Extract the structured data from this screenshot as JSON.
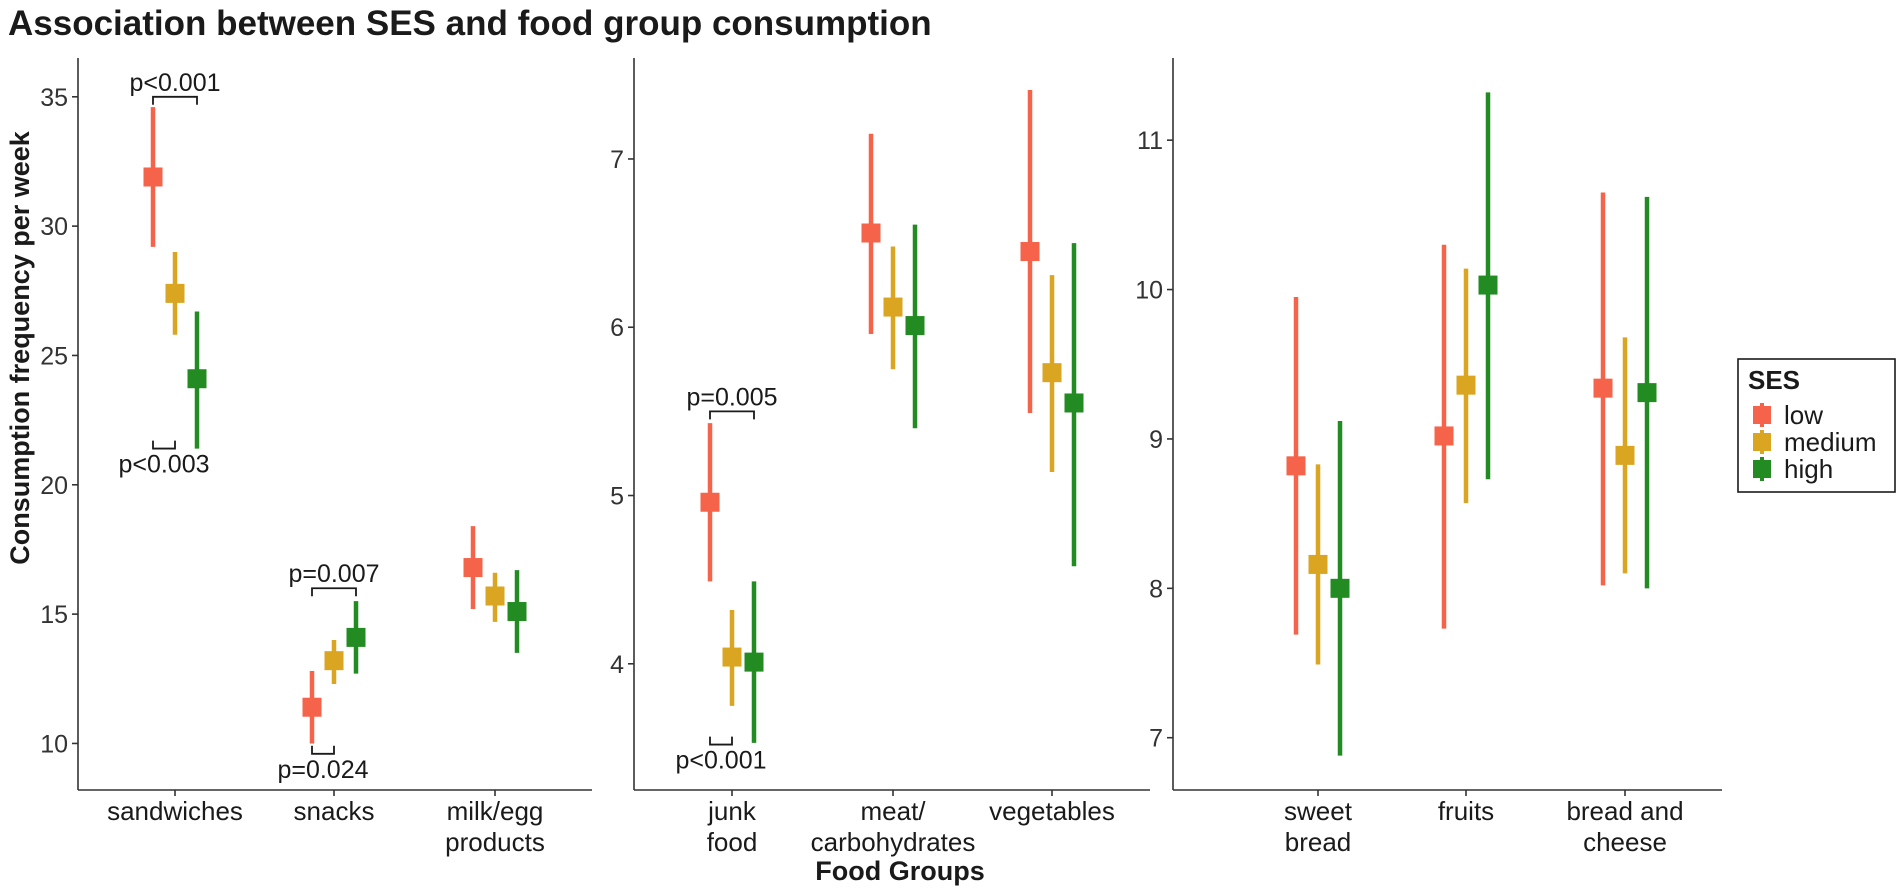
{
  "colors": {
    "low": "#f4634a",
    "medium": "#daa520",
    "high": "#228b22",
    "axis": "#333333",
    "text": "#1a1a1a"
  },
  "chart_data": {
    "type": "scatter",
    "title": "Association between SES and food group consumption",
    "ylabel": "Consumption frequency per week",
    "xlabel": "Food Groups",
    "legend": {
      "title": "SES",
      "placement": "right",
      "entries": [
        "low",
        "medium",
        "high"
      ]
    },
    "series_names": [
      "low",
      "medium",
      "high"
    ],
    "panels": [
      {
        "ylim": [
          8.2,
          36.5
        ],
        "yticks": [
          10,
          15,
          20,
          25,
          30,
          35
        ],
        "categories": [
          {
            "label": [
              "sandwiches"
            ],
            "points": [
              {
                "series": "low",
                "y": 31.9,
                "lo": 29.2,
                "hi": 34.6
              },
              {
                "series": "medium",
                "y": 27.4,
                "lo": 25.8,
                "hi": 29.0
              },
              {
                "series": "high",
                "y": 24.1,
                "lo": 21.4,
                "hi": 26.7
              }
            ]
          },
          {
            "label": [
              "snacks"
            ],
            "points": [
              {
                "series": "low",
                "y": 11.4,
                "lo": 10.0,
                "hi": 12.8
              },
              {
                "series": "medium",
                "y": 13.2,
                "lo": 12.3,
                "hi": 14.0
              },
              {
                "series": "high",
                "y": 14.1,
                "lo": 12.7,
                "hi": 15.5
              }
            ]
          },
          {
            "label": [
              "milk/egg",
              "products"
            ],
            "points": [
              {
                "series": "low",
                "y": 16.8,
                "lo": 15.2,
                "hi": 18.4
              },
              {
                "series": "medium",
                "y": 15.7,
                "lo": 14.7,
                "hi": 16.6
              },
              {
                "series": "high",
                "y": 15.1,
                "lo": 13.5,
                "hi": 16.7
              }
            ]
          }
        ],
        "annotations": [
          {
            "text": "p<0.001",
            "cat": 0,
            "from": "low",
            "to": "high",
            "y": 35.0,
            "side": "above"
          },
          {
            "text": "p<0.003",
            "cat": 0,
            "from": "low",
            "to": "medium",
            "y": 21.4,
            "side": "below"
          },
          {
            "text": "p=0.007",
            "cat": 1,
            "from": "low",
            "to": "high",
            "y": 16.0,
            "side": "above"
          },
          {
            "text": "p=0.024",
            "cat": 1,
            "from": "low",
            "to": "medium",
            "y": 9.6,
            "side": "below"
          }
        ]
      },
      {
        "ylim": [
          3.25,
          7.6
        ],
        "yticks": [
          4,
          5,
          6,
          7
        ],
        "categories": [
          {
            "label": [
              "junk",
              "food"
            ],
            "points": [
              {
                "series": "low",
                "y": 4.96,
                "lo": 4.49,
                "hi": 5.43
              },
              {
                "series": "medium",
                "y": 4.04,
                "lo": 3.75,
                "hi": 4.32
              },
              {
                "series": "high",
                "y": 4.01,
                "lo": 3.53,
                "hi": 4.49
              }
            ]
          },
          {
            "label": [
              "meat/",
              "carbohydrates"
            ],
            "points": [
              {
                "series": "low",
                "y": 6.56,
                "lo": 5.96,
                "hi": 7.15
              },
              {
                "series": "medium",
                "y": 6.12,
                "lo": 5.75,
                "hi": 6.48
              },
              {
                "series": "high",
                "y": 6.01,
                "lo": 5.4,
                "hi": 6.61
              }
            ]
          },
          {
            "label": [
              "vegetables"
            ],
            "points": [
              {
                "series": "low",
                "y": 6.45,
                "lo": 5.49,
                "hi": 7.41
              },
              {
                "series": "medium",
                "y": 5.73,
                "lo": 5.14,
                "hi": 6.31
              },
              {
                "series": "high",
                "y": 5.55,
                "lo": 4.58,
                "hi": 6.5
              }
            ]
          }
        ],
        "annotations": [
          {
            "text": "p=0.005",
            "cat": 0,
            "from": "low",
            "to": "high",
            "y": 5.5,
            "side": "above"
          },
          {
            "text": "p<0.001",
            "cat": 0,
            "from": "low",
            "to": "medium",
            "y": 3.52,
            "side": "below"
          }
        ]
      },
      {
        "ylim": [
          6.65,
          11.55
        ],
        "yticks": [
          7,
          8,
          9,
          10,
          11
        ],
        "categories": [
          {
            "label": [
              "sweet",
              "bread"
            ],
            "points": [
              {
                "series": "low",
                "y": 8.82,
                "lo": 7.69,
                "hi": 9.95
              },
              {
                "series": "medium",
                "y": 8.16,
                "lo": 7.49,
                "hi": 8.83
              },
              {
                "series": "high",
                "y": 8.0,
                "lo": 6.88,
                "hi": 9.12
              }
            ]
          },
          {
            "label": [
              "fruits"
            ],
            "points": [
              {
                "series": "low",
                "y": 9.02,
                "lo": 7.73,
                "hi": 10.3
              },
              {
                "series": "medium",
                "y": 9.36,
                "lo": 8.57,
                "hi": 10.14
              },
              {
                "series": "high",
                "y": 10.03,
                "lo": 8.73,
                "hi": 11.32
              }
            ]
          },
          {
            "label": [
              "bread and",
              "cheese"
            ],
            "points": [
              {
                "series": "low",
                "y": 9.34,
                "lo": 8.02,
                "hi": 10.65
              },
              {
                "series": "medium",
                "y": 8.89,
                "lo": 8.1,
                "hi": 9.68
              },
              {
                "series": "high",
                "y": 9.31,
                "lo": 8.0,
                "hi": 10.62
              }
            ]
          }
        ],
        "annotations": []
      }
    ]
  }
}
